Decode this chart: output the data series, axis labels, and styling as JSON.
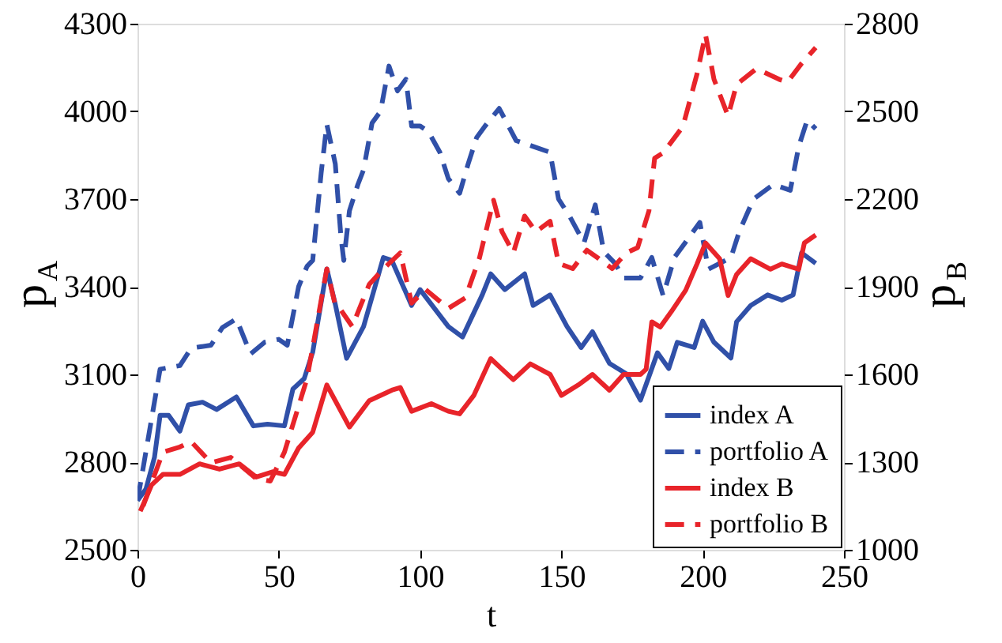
{
  "chart_data": {
    "type": "line",
    "xlabel": "t",
    "ylabel": "p$_{A}$",
    "y2label": "p$_{B}$",
    "xlim": [
      0,
      250
    ],
    "xticks": [
      0,
      50,
      100,
      150,
      200,
      250
    ],
    "ylim": [
      2500,
      4300
    ],
    "yticks": [
      2500,
      2800,
      3100,
      3400,
      3700,
      4000,
      4300
    ],
    "y2lim": [
      1000,
      2800
    ],
    "y2ticks": [
      1000,
      1300,
      1600,
      1900,
      2200,
      2500,
      2800
    ],
    "grid": false,
    "legend": "bottom right",
    "series": [
      {
        "name": "index A",
        "color": "#3050a8",
        "line_style": "solid",
        "x": [
          0,
          3,
          6,
          8,
          11,
          15,
          18,
          23,
          28,
          35,
          41,
          46,
          52,
          55,
          59,
          62,
          67,
          70,
          74,
          80,
          87,
          90,
          97,
          100,
          110,
          115,
          122,
          125,
          130,
          137,
          140,
          146,
          152,
          157,
          161,
          167,
          173,
          178,
          184,
          188,
          191,
          197,
          200,
          204,
          210,
          212,
          217,
          223,
          228,
          232,
          235,
          240
        ],
        "values": [
          2668,
          2708,
          2816,
          2960,
          2960,
          2906,
          2996,
          3005,
          2980,
          3023,
          2924,
          2930,
          2924,
          3050,
          3086,
          3176,
          3461,
          3340,
          3155,
          3264,
          3500,
          3490,
          3336,
          3390,
          3264,
          3228,
          3372,
          3444,
          3390,
          3444,
          3336,
          3372,
          3264,
          3192,
          3246,
          3138,
          3102,
          3012,
          3174,
          3120,
          3210,
          3192,
          3282,
          3210,
          3156,
          3280,
          3336,
          3372,
          3354,
          3372,
          3516,
          3480
        ]
      },
      {
        "name": "portfolio A",
        "color": "#3050a8",
        "line_style": "dashed",
        "x": [
          0,
          8,
          15,
          19,
          26,
          30,
          35,
          40,
          45,
          50,
          53,
          57,
          60,
          62,
          65,
          67,
          70,
          72,
          73,
          75,
          78,
          80,
          83,
          86,
          89,
          92,
          95,
          97,
          100,
          103,
          107,
          110,
          114,
          117,
          120,
          123,
          128,
          134,
          140,
          146,
          149,
          153,
          158,
          162,
          165,
          169,
          172,
          178,
          182,
          186,
          190,
          199,
          202,
          210,
          213,
          218,
          225,
          231,
          234,
          237,
          240
        ],
        "values": [
          2668,
          3118,
          3130,
          3190,
          3200,
          3260,
          3290,
          3170,
          3210,
          3220,
          3200,
          3400,
          3470,
          3490,
          3790,
          3956,
          3820,
          3570,
          3490,
          3660,
          3750,
          3800,
          3960,
          4000,
          4155,
          4070,
          4110,
          3950,
          3950,
          3930,
          3860,
          3770,
          3720,
          3820,
          3910,
          3950,
          4010,
          3900,
          3880,
          3860,
          3700,
          3640,
          3550,
          3680,
          3520,
          3480,
          3430,
          3430,
          3500,
          3370,
          3500,
          3620,
          3460,
          3500,
          3590,
          3700,
          3750,
          3730,
          3880,
          3970,
          3940
        ]
      },
      {
        "name": "index B",
        "color": "#e8242a",
        "line_style": "solid",
        "axis": "y2",
        "x": [
          1,
          5,
          9,
          15,
          22,
          29,
          36,
          42,
          48,
          52,
          57,
          62,
          67,
          72,
          75,
          82,
          90,
          93,
          97,
          104,
          110,
          114,
          119,
          125,
          129,
          133,
          139,
          146,
          150,
          156,
          161,
          167,
          172,
          178,
          180,
          182,
          185,
          189,
          194,
          198,
          201,
          206,
          209,
          212,
          217,
          224,
          228,
          234,
          236,
          240
        ],
        "values": [
          1132,
          1222,
          1258,
          1258,
          1294,
          1276,
          1294,
          1249,
          1267,
          1258,
          1348,
          1402,
          1564,
          1474,
          1420,
          1510,
          1546,
          1555,
          1474,
          1500,
          1474,
          1465,
          1528,
          1654,
          1618,
          1582,
          1636,
          1600,
          1528,
          1564,
          1600,
          1546,
          1600,
          1600,
          1618,
          1780,
          1762,
          1816,
          1888,
          1978,
          2050,
          1996,
          1870,
          1942,
          1996,
          1960,
          1978,
          1960,
          2050,
          2077
        ]
      },
      {
        "name": "portfolio B",
        "color": "#e8242a",
        "line_style": "dashed",
        "axis": "y2",
        "x": [
          2,
          9,
          15,
          19,
          26,
          33,
          42,
          47,
          52,
          56,
          60,
          67,
          70,
          72,
          76,
          82,
          87,
          93,
          97,
          102,
          110,
          116,
          121,
          126,
          129,
          133,
          137,
          141,
          146,
          149,
          154,
          159,
          163,
          168,
          173,
          177,
          181,
          183,
          186,
          193,
          198,
          201,
          204,
          209,
          212,
          219,
          227,
          230,
          235,
          240
        ],
        "values": [
          1150,
          1334,
          1352,
          1370,
          1298,
          1316,
          1244,
          1235,
          1334,
          1460,
          1586,
          1961,
          1836,
          1820,
          1764,
          1908,
          1961,
          2016,
          1844,
          1890,
          1826,
          1862,
          1998,
          2196,
          2088,
          2016,
          2142,
          2088,
          2124,
          1980,
          1962,
          2025,
          1998,
          1962,
          2016,
          2034,
          2160,
          2340,
          2358,
          2448,
          2628,
          2763,
          2610,
          2484,
          2592,
          2646,
          2610,
          2600,
          2664,
          2718
        ]
      }
    ]
  }
}
